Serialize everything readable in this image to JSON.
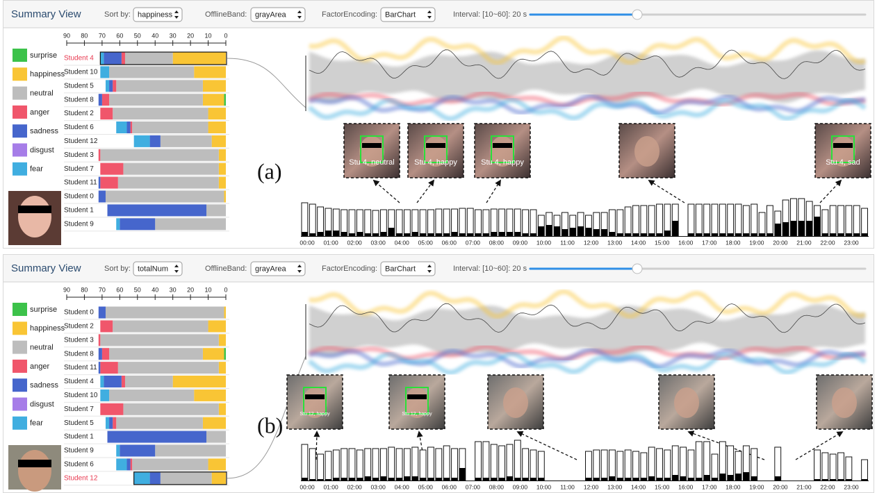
{
  "panels": [
    {
      "label": "(a)",
      "header": {
        "title": "Summary View",
        "sort_label": "Sort by:",
        "sort_value": "happiness",
        "band_label": "OfflineBand:",
        "band_value": "grayArea",
        "encoding_label": "FactorEncoding:",
        "encoding_value": "BarChart",
        "interval": "Interval: [10~60]: 20 s"
      },
      "student_chart": {
        "type": "bar",
        "orientation": "horizontal",
        "stacked": true,
        "selected": 0,
        "categories": [
          "Student 4",
          "Student 10",
          "Student 5",
          "Student 8",
          "Student 2",
          "Student 6",
          "Student 12",
          "Student 3",
          "Student 7",
          "Student 11",
          "Student 0",
          "Student 1",
          "Student 9"
        ],
        "xlim": [
          90,
          0
        ],
        "xticks": [
          90,
          80,
          70,
          60,
          50,
          40,
          30,
          20,
          10,
          0
        ],
        "series": [
          {
            "name": "surprise",
            "color": "#3cc24a",
            "values": [
              0,
              0,
              0,
              1,
              0,
              0,
              0,
              0,
              0,
              0,
              0,
              0,
              0
            ]
          },
          {
            "name": "happiness",
            "color": "#f9c535",
            "values": [
              30,
              18,
              13,
              12,
              10,
              10,
              8,
              4,
              4,
              4,
              1,
              0,
              0
            ]
          },
          {
            "name": "neutral",
            "color": "#bdbdbd",
            "values": [
              27,
              48,
              49,
              53,
              54,
              43,
              29,
              67,
              54,
              57,
              67,
              11,
              40
            ]
          },
          {
            "name": "anger",
            "color": "#f0566b",
            "values": [
              2,
              0,
              2,
              4,
              7,
              1,
              0,
              1,
              13,
              10,
              0,
              0,
              0
            ]
          },
          {
            "name": "sadness",
            "color": "#4666cc",
            "values": [
              10,
              0,
              2,
              2,
              0,
              2,
              6,
              0,
              0,
              1,
              4,
              56,
              20
            ]
          },
          {
            "name": "disgust",
            "color": "#a67de8",
            "values": [
              0,
              0,
              0,
              0,
              0,
              0,
              0,
              0,
              0,
              0,
              0,
              0,
              0
            ]
          },
          {
            "name": "fear",
            "color": "#40aee0",
            "values": [
              2,
              5,
              2,
              0,
              0,
              6,
              9,
              0,
              0,
              0,
              0,
              0,
              2
            ]
          }
        ]
      },
      "timeline": {
        "type": "bar",
        "x_labels": [
          "00:00",
          "01:00",
          "02:00",
          "03:00",
          "04:00",
          "05:00",
          "06:00",
          "07:00",
          "08:00",
          "09:00",
          "10:00",
          "11:00",
          "12:00",
          "13:00",
          "14:00",
          "15:00",
          "16:00",
          "17:00",
          "18:00",
          "19:00",
          "20:00",
          "21:00",
          "22:00",
          "23:00"
        ],
        "series": [
          {
            "color": "#ffffff",
            "values": [
              48,
              46,
              42,
              40,
              39,
              38,
              38,
              38,
              38,
              37,
              38,
              38,
              38,
              38,
              38,
              38,
              38,
              39,
              39,
              39,
              40,
              40,
              38,
              38,
              39,
              39,
              39,
              39,
              38,
              38,
              30,
              34,
              30,
              34,
              30,
              34,
              30,
              34,
              34,
              38,
              38,
              42,
              44,
              44,
              44,
              46,
              46,
              46,
              null,
              46,
              46,
              46,
              46,
              46,
              46,
              46,
              44,
              46,
              34,
              44,
              36,
              52,
              54,
              54,
              50,
              44,
              38,
              44,
              44,
              44,
              44,
              40
            ]
          },
          {
            "color": "#000000",
            "values": [
              6,
              4,
              6,
              8,
              8,
              6,
              4,
              6,
              4,
              4,
              6,
              12,
              4,
              4,
              6,
              4,
              4,
              4,
              4,
              6,
              4,
              4,
              4,
              4,
              6,
              6,
              6,
              6,
              4,
              4,
              14,
              16,
              14,
              10,
              12,
              14,
              12,
              10,
              10,
              6,
              4,
              4,
              4,
              4,
              4,
              4,
              8,
              22,
              null,
              4,
              4,
              4,
              4,
              4,
              4,
              4,
              4,
              4,
              4,
              4,
              18,
              20,
              22,
              22,
              22,
              28,
              4,
              4,
              4,
              4,
              4,
              4
            ]
          }
        ]
      },
      "thumbnails": [
        "Stu 4, neutral",
        "Stu 4, happy",
        "Stu 4, happy",
        null,
        "Stu 4, sad"
      ]
    },
    {
      "label": "(b)",
      "header": {
        "title": "Summary View",
        "sort_label": "Sort by:",
        "sort_value": "totalNum",
        "band_label": "OfflineBand:",
        "band_value": "grayArea",
        "encoding_label": "FactorEncoding:",
        "encoding_value": "BarChart",
        "interval": "Interval: [10~60]: 20 s"
      },
      "student_chart": {
        "type": "bar",
        "orientation": "horizontal",
        "stacked": true,
        "selected": 12,
        "categories": [
          "Student 0",
          "Student 2",
          "Student 3",
          "Student 8",
          "Student 11",
          "Student 4",
          "Student 10",
          "Student 7",
          "Student 5",
          "Student 1",
          "Student 9",
          "Student 6",
          "Student 12"
        ],
        "xlim": [
          90,
          0
        ],
        "xticks": [
          90,
          80,
          70,
          60,
          50,
          40,
          30,
          20,
          10,
          0
        ],
        "series": [
          {
            "name": "surprise",
            "color": "#3cc24a",
            "values": [
              0,
              0,
              0,
              1,
              0,
              0,
              0,
              0,
              0,
              0,
              0,
              0,
              0
            ]
          },
          {
            "name": "happiness",
            "color": "#f9c535",
            "values": [
              1,
              10,
              4,
              12,
              4,
              30,
              18,
              4,
              13,
              0,
              0,
              10,
              8
            ]
          },
          {
            "name": "neutral",
            "color": "#bdbdbd",
            "values": [
              67,
              54,
              67,
              53,
              57,
              27,
              48,
              54,
              49,
              11,
              40,
              43,
              29
            ]
          },
          {
            "name": "anger",
            "color": "#f0566b",
            "values": [
              0,
              7,
              1,
              4,
              10,
              2,
              0,
              13,
              2,
              0,
              0,
              1,
              0
            ]
          },
          {
            "name": "sadness",
            "color": "#4666cc",
            "values": [
              4,
              0,
              0,
              2,
              1,
              10,
              0,
              0,
              2,
              56,
              20,
              2,
              6
            ]
          },
          {
            "name": "disgust",
            "color": "#a67de8",
            "values": [
              0,
              0,
              0,
              0,
              0,
              0,
              0,
              0,
              0,
              0,
              0,
              0,
              0
            ]
          },
          {
            "name": "fear",
            "color": "#40aee0",
            "values": [
              0,
              0,
              0,
              0,
              0,
              2,
              5,
              0,
              2,
              0,
              2,
              6,
              9
            ]
          }
        ]
      },
      "timeline": {
        "type": "bar",
        "x_labels": [
          "00:00",
          "01:00",
          "02:00",
          "03:00",
          "04:00",
          "05:00",
          "06:00",
          "07:00",
          "08:00",
          "09:00",
          "10:00",
          "11:00",
          "12:00",
          "13:00",
          "14:00",
          "15:00",
          "16:00",
          "17:00",
          "18:00",
          "19:00",
          "20:00",
          "21:00",
          "22:00",
          "23:00"
        ],
        "series": [
          {
            "color": "#ffffff",
            "values": [
              52,
              46,
              38,
              42,
              44,
              46,
              46,
              44,
              46,
              46,
              46,
              48,
              46,
              46,
              48,
              44,
              48,
              46,
              50,
              46,
              46,
              null,
              56,
              56,
              52,
              50,
              52,
              58,
              46,
              44,
              42,
              null,
              null,
              null,
              null,
              null,
              42,
              44,
              44,
              44,
              42,
              44,
              42,
              40,
              48,
              46,
              44,
              50,
              48,
              44,
              56,
              56,
              38,
              56,
              50,
              42,
              50,
              46,
              null,
              null,
              48,
              null,
              null,
              null,
              null,
              44,
              40,
              38,
              40,
              34,
              null,
              30
            ]
          },
          {
            "color": "#000000",
            "values": [
              4,
              2,
              2,
              2,
              4,
              4,
              4,
              4,
              6,
              4,
              6,
              4,
              4,
              6,
              6,
              4,
              4,
              4,
              4,
              4,
              18,
              null,
              4,
              4,
              4,
              4,
              6,
              4,
              4,
              4,
              4,
              null,
              null,
              null,
              null,
              null,
              4,
              4,
              4,
              6,
              4,
              4,
              4,
              4,
              6,
              4,
              4,
              8,
              6,
              4,
              4,
              8,
              4,
              10,
              8,
              10,
              12,
              6,
              null,
              null,
              6,
              null,
              null,
              null,
              null,
              2,
              2,
              2,
              2,
              2,
              null,
              2
            ]
          }
        ]
      },
      "thumbnails": [
        "Stu 12, happy",
        "Stu 12, happy",
        null,
        null,
        null
      ]
    }
  ]
}
